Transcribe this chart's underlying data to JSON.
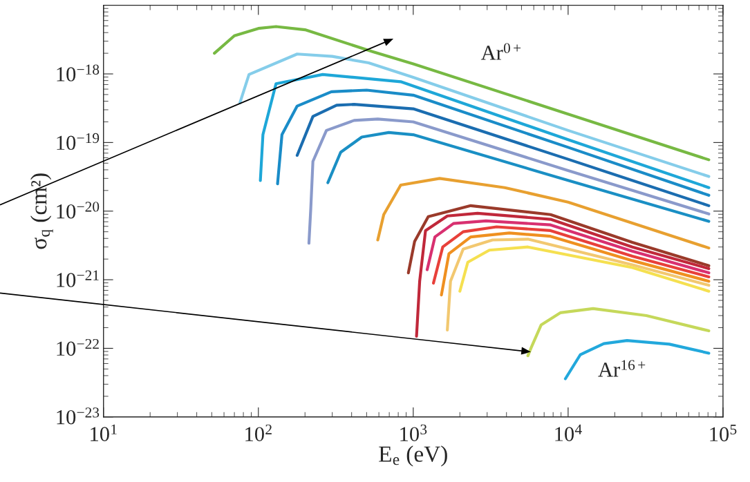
{
  "chart_data": {
    "type": "line",
    "xlabel": "E$_{e}$ (eV)",
    "ylabel": "σ$_{q}$ (cm²)",
    "log": "xy",
    "grid": false,
    "legend": false,
    "marker": "none",
    "line_style": "solid",
    "xlim": [
      10,
      100000
    ],
    "ylim": [
      1e-23,
      1e-17
    ],
    "xticks": [
      {
        "value": 10,
        "label": "10$^{1}$"
      },
      {
        "value": 100,
        "label": "10$^{2}$"
      },
      {
        "value": 1000,
        "label": "10$^{3}$"
      },
      {
        "value": 10000,
        "label": "10$^{4}$"
      },
      {
        "value": 100000,
        "label": "10$^{5}$"
      }
    ],
    "yticks": [
      {
        "value": 1e-23,
        "label": "10$^{−23}$"
      },
      {
        "value": 1e-22,
        "label": "10$^{−22}$"
      },
      {
        "value": 1e-21,
        "label": "10$^{−21}$"
      },
      {
        "value": 1e-20,
        "label": "10$^{−20}$"
      },
      {
        "value": 1e-19,
        "label": "10$^{−19}$"
      },
      {
        "value": 1e-18,
        "label": "10$^{−18}$"
      }
    ],
    "annotations": [
      "Ar$^{0+}$",
      "Ar$^{16+}$"
    ],
    "series": [
      {
        "color": "#77b943",
        "x": [
          52,
          70,
          100,
          130,
          200,
          550,
          1000,
          10000,
          81000
        ],
        "values": [
          2e-18,
          3.6e-18,
          4.6e-18,
          4.9e-18,
          4.4e-18,
          2.1e-18,
          1.4e-18,
          2.6e-19,
          5.6e-20
        ]
      },
      {
        "color": "#85cdea",
        "x": [
          76,
          87,
          178,
          300,
          515,
          1000,
          10000,
          81000
        ],
        "values": [
          3.8e-19,
          9.8e-19,
          1.95e-18,
          1.8e-18,
          1.45e-18,
          8.9e-19,
          1.5e-19,
          3.2e-20
        ]
      },
      {
        "color": "#1ea7d8",
        "x": [
          103,
          107,
          130,
          260,
          830,
          10000,
          81000
        ],
        "values": [
          2.8e-20,
          1.3e-19,
          7.2e-19,
          9.8e-19,
          7.7e-19,
          1.1e-19,
          2.2e-20
        ]
      },
      {
        "color": "#1a8cc8",
        "x": [
          133,
          142,
          178,
          296,
          500,
          1000,
          10000,
          81000
        ],
        "values": [
          2.5e-20,
          1.3e-19,
          3.4e-19,
          5.5e-19,
          5.8e-19,
          4.9e-19,
          8.5e-20,
          1.7e-20
        ]
      },
      {
        "color": "#1b6db0",
        "x": [
          178,
          225,
          320,
          415,
          1000,
          10000,
          81000
        ],
        "values": [
          6.5e-20,
          2.4e-19,
          3.5e-19,
          3.6e-19,
          3.1e-19,
          5.7e-20,
          1.2e-20
        ]
      },
      {
        "color": "#8a9acb",
        "x": [
          212,
          218,
          225,
          275,
          415,
          590,
          1000,
          10000,
          81000
        ],
        "values": [
          3.4e-21,
          1.1e-20,
          5.3e-20,
          1.5e-19,
          2.1e-19,
          2.2e-19,
          2e-19,
          3.9e-20,
          9.1e-21
        ]
      },
      {
        "color": "#1a8fc4",
        "x": [
          281,
          340,
          465,
          695,
          1000,
          10000,
          81000
        ],
        "values": [
          2.6e-20,
          7.2e-20,
          1.2e-19,
          1.4e-19,
          1.3e-19,
          2.8e-20,
          7.1e-21
        ]
      },
      {
        "color": "#e8a030",
        "x": [
          590,
          645,
          830,
          1480,
          3900,
          10000,
          81000
        ],
        "values": [
          3.8e-21,
          8.9e-21,
          2.4e-20,
          3e-20,
          2.2e-20,
          1.35e-20,
          2.9e-21
        ]
      },
      {
        "color": "#9a3a2a",
        "x": [
          930,
          1020,
          1250,
          2350,
          7700,
          26000,
          81000
        ],
        "values": [
          1.26e-21,
          3.6e-21,
          8.3e-21,
          1.2e-20,
          8.9e-21,
          3.5e-21,
          1.6e-21
        ]
      },
      {
        "color": "#c0283a",
        "x": [
          1050,
          1100,
          1200,
          1660,
          2600,
          7700,
          26000,
          81000
        ],
        "values": [
          1.5e-22,
          9.5e-22,
          5.2e-21,
          8.5e-21,
          9.3e-21,
          7.6e-21,
          3e-21,
          1.45e-21
        ]
      },
      {
        "color": "#d83070",
        "x": [
          1230,
          1380,
          1820,
          2950,
          7700,
          26000,
          81000
        ],
        "values": [
          1.4e-21,
          4.2e-21,
          6.6e-21,
          7.2e-21,
          6.3e-21,
          2.6e-21,
          1.26e-21
        ]
      },
      {
        "color": "#e8403a",
        "x": [
          1350,
          1550,
          2100,
          3450,
          7700,
          26000,
          81000
        ],
        "values": [
          8.9e-22,
          3e-21,
          5e-21,
          5.9e-21,
          5.2e-21,
          2.2e-21,
          1.1e-21
        ]
      },
      {
        "color": "#ef9020",
        "x": [
          1520,
          1700,
          2350,
          4170,
          7700,
          26000,
          81000
        ],
        "values": [
          6e-22,
          2.4e-21,
          4.2e-21,
          4.8e-21,
          4.3e-21,
          1.9e-21,
          9.5e-22
        ]
      },
      {
        "color": "#f2c870",
        "x": [
          1660,
          1740,
          2100,
          3250,
          5500,
          26000,
          81000
        ],
        "values": [
          1.85e-22,
          9.5e-22,
          2.8e-21,
          3.8e-21,
          3.9e-21,
          1.65e-21,
          8.3e-22
        ]
      },
      {
        "color": "#f5e050",
        "x": [
          2000,
          2250,
          3100,
          5500,
          26000,
          81000
        ],
        "values": [
          6.8e-22,
          1.8e-21,
          2.7e-21,
          3e-21,
          1.5e-21,
          6.8e-22
        ]
      },
      {
        "color": "#c5d85a",
        "x": [
          5500,
          5750,
          6700,
          8900,
          14500,
          32000,
          81000
        ],
        "values": [
          7.8e-23,
          1e-22,
          2.2e-22,
          3.3e-22,
          3.8e-22,
          3e-22,
          1.8e-22
        ]
      },
      {
        "color": "#22a8dc",
        "x": [
          9600,
          12000,
          17000,
          24000,
          45000,
          81000
        ],
        "values": [
          3.6e-23,
          8.1e-23,
          1.17e-22,
          1.3e-22,
          1.15e-22,
          8.5e-23
        ]
      }
    ]
  }
}
